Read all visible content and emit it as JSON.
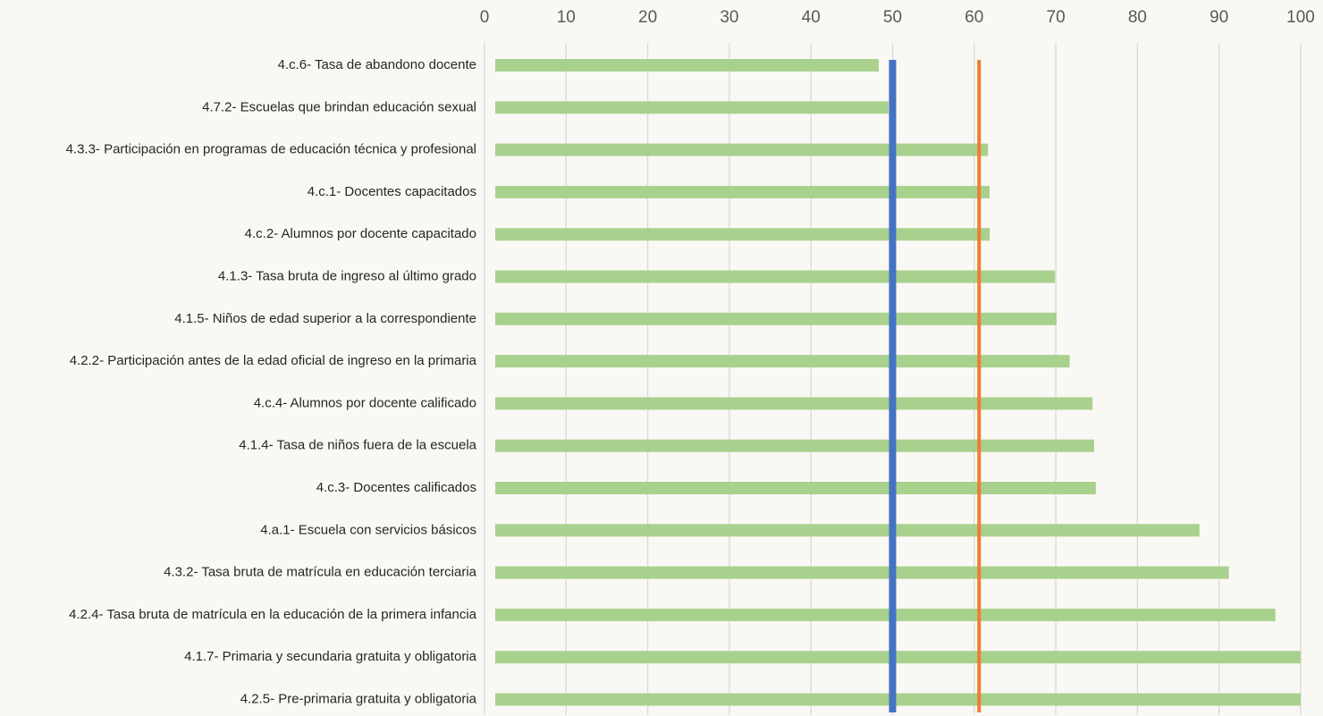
{
  "chart_data": {
    "type": "bar",
    "orientation": "horizontal",
    "title": "",
    "xlabel": "",
    "ylabel": "",
    "xlim": [
      0,
      100
    ],
    "x_ticks": [
      0,
      10,
      20,
      30,
      40,
      50,
      60,
      70,
      80,
      90,
      100
    ],
    "x_axis_position": "top",
    "grid": true,
    "legend": "none",
    "categories": [
      "4.c.6- Tasa de abandono docente",
      "4.7.2- Escuelas que brindan educación sexual",
      "4.3.3- Participación en programas de educación técnica y profesional",
      "4.c.1- Docentes capacitados",
      "4.c.2- Alumnos por docente capacitado",
      "4.1.3- Tasa bruta de ingreso al último grado",
      "4.1.5- Niños de edad superior a la correspondiente",
      "4.2.2- Participación antes de la edad oficial de ingreso en la primaria",
      "4.c.4- Alumnos por docente calificado",
      "4.1.4- Tasa de niños fuera de la escuela",
      "4.c.3- Docentes calificados",
      "4.a.1- Escuela con servicios básicos",
      "4.3.2- Tasa bruta de matrícula en educación terciaria",
      "4.2.4- Tasa bruta de matrícula en la educación de la primera infancia",
      "4.1.7- Primaria y secundaria gratuita y obligatoria",
      "4.2.5- Pre-primaria gratuita y obligatoria"
    ],
    "series": [
      {
        "values": [
          48.3,
          49.5,
          61.7,
          61.9,
          61.9,
          69.9,
          70.1,
          71.7,
          74.5,
          74.7,
          74.9,
          87.6,
          91.2,
          96.9,
          100,
          100
        ],
        "color": "#a9d18e"
      }
    ],
    "reference_lines": [
      {
        "value": 50,
        "color": "#4472c4"
      },
      {
        "value": 60.6,
        "color": "#ed7d31"
      }
    ]
  }
}
